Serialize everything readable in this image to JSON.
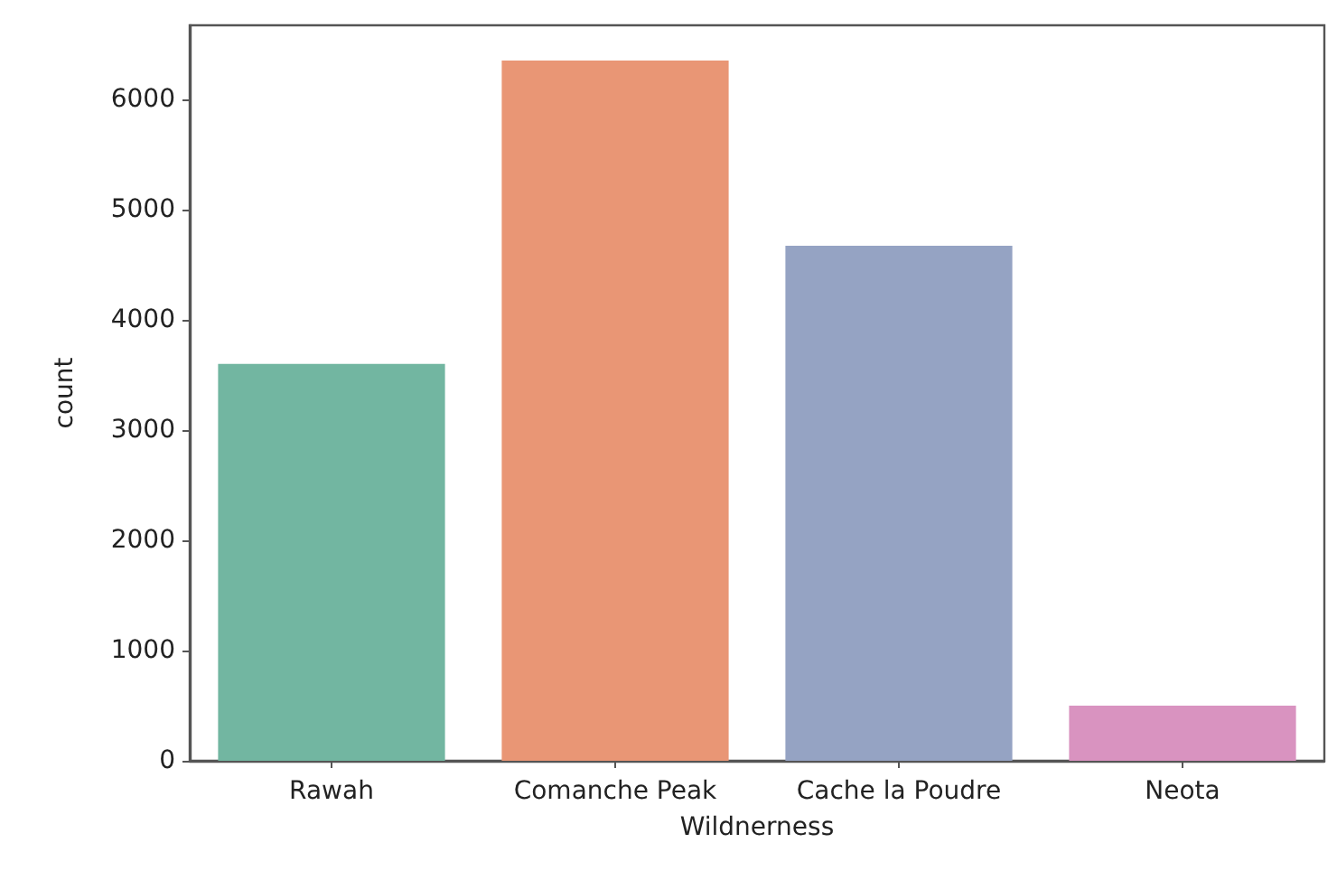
{
  "chart_data": {
    "type": "bar",
    "xlabel": "Wildnerness",
    "ylabel": "count",
    "categories": [
      "Rawah",
      "Comanche Peak",
      "Cache la Poudre",
      "Neota"
    ],
    "values": [
      3600,
      6350,
      4670,
      500
    ],
    "colors": [
      "#72b6a1",
      "#e99675",
      "#95a3c3",
      "#d993c0"
    ],
    "ylim": [
      0,
      6670
    ],
    "yticks": [
      0,
      1000,
      2000,
      3000,
      4000,
      5000,
      6000
    ],
    "grid": false
  }
}
